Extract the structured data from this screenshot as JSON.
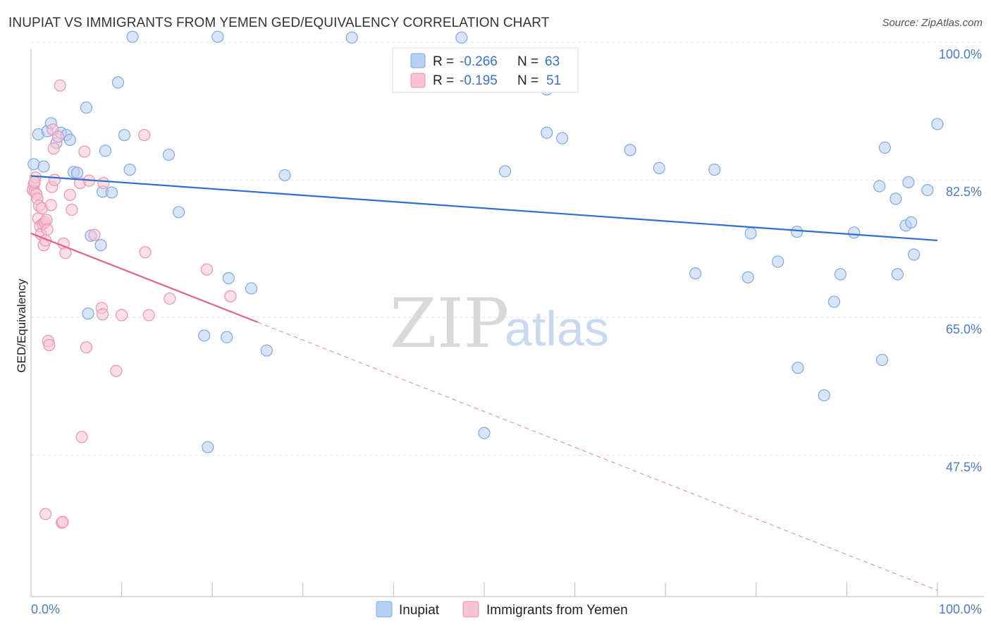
{
  "header": {
    "title": "INUPIAT VS IMMIGRANTS FROM YEMEN GED/EQUIVALENCY CORRELATION CHART",
    "source": "Source: ZipAtlas.com"
  },
  "watermark": {
    "zip": "ZIP",
    "atlas": "atlas"
  },
  "legend": {
    "series": [
      {
        "r_label": "R =",
        "r_value": "-0.266",
        "n_label": "N =",
        "n_value": "63"
      },
      {
        "r_label": "R =",
        "r_value": "-0.195",
        "n_label": "N =",
        "n_value": "51"
      }
    ]
  },
  "bottom_legend": [
    "Inupiat",
    "Immigrants from Yemen"
  ],
  "colors": {
    "inupiat_fill": "#b8d0f2",
    "inupiat_stroke": "#7fa8e0",
    "inupiat_line": "#2f6fcf",
    "yemen_fill": "#f8c4d4",
    "yemen_stroke": "#ee92b0",
    "yemen_line": "#e0628e",
    "grid": "#e2e2e2",
    "axis_label": "#4a7cc9"
  },
  "chart_data": {
    "type": "scatter",
    "title": "INUPIAT VS IMMIGRANTS FROM YEMEN GED/EQUIVALENCY CORRELATION CHART",
    "xlabel": "",
    "ylabel": "GED/Equivalency",
    "xlim": [
      0,
      100
    ],
    "ylim": [
      29.5,
      100
    ],
    "x_tick_labels": [
      "0.0%",
      "100.0%"
    ],
    "y_ticks": [
      100.0,
      82.5,
      65.0,
      47.5
    ],
    "y_tick_labels": [
      "100.0%",
      "82.5%",
      "65.0%",
      "47.5%"
    ],
    "grid": true,
    "series": [
      {
        "name": "Inupiat",
        "r": -0.266,
        "n": 63,
        "trend": {
          "x": [
            0,
            100
          ],
          "y": [
            83.0,
            74.8
          ]
        },
        "points": [
          {
            "x": 0.3,
            "y": 84.5
          },
          {
            "x": 0.8,
            "y": 88.3
          },
          {
            "x": 1.4,
            "y": 84.2
          },
          {
            "x": 1.8,
            "y": 88.7
          },
          {
            "x": 2.2,
            "y": 89.7
          },
          {
            "x": 2.8,
            "y": 87.2
          },
          {
            "x": 3.3,
            "y": 88.5
          },
          {
            "x": 3.9,
            "y": 88.2
          },
          {
            "x": 4.3,
            "y": 87.6
          },
          {
            "x": 4.7,
            "y": 83.5
          },
          {
            "x": 5.1,
            "y": 83.4
          },
          {
            "x": 6.1,
            "y": 91.7
          },
          {
            "x": 6.3,
            "y": 65.5
          },
          {
            "x": 6.6,
            "y": 75.4
          },
          {
            "x": 7.7,
            "y": 74.2
          },
          {
            "x": 7.9,
            "y": 81.0
          },
          {
            "x": 8.2,
            "y": 86.2
          },
          {
            "x": 8.9,
            "y": 80.9
          },
          {
            "x": 9.6,
            "y": 94.9
          },
          {
            "x": 10.3,
            "y": 88.2
          },
          {
            "x": 10.9,
            "y": 83.8
          },
          {
            "x": 11.2,
            "y": 100.7
          },
          {
            "x": 15.2,
            "y": 85.7
          },
          {
            "x": 16.3,
            "y": 78.4
          },
          {
            "x": 19.1,
            "y": 62.7
          },
          {
            "x": 19.5,
            "y": 48.5
          },
          {
            "x": 20.6,
            "y": 100.7
          },
          {
            "x": 21.6,
            "y": 62.5
          },
          {
            "x": 21.8,
            "y": 70.0
          },
          {
            "x": 24.3,
            "y": 68.7
          },
          {
            "x": 26.0,
            "y": 60.8
          },
          {
            "x": 28.0,
            "y": 83.1
          },
          {
            "x": 35.4,
            "y": 100.6
          },
          {
            "x": 47.5,
            "y": 100.6
          },
          {
            "x": 50.0,
            "y": 50.3
          },
          {
            "x": 52.3,
            "y": 83.6
          },
          {
            "x": 56.9,
            "y": 94.0
          },
          {
            "x": 56.9,
            "y": 88.5
          },
          {
            "x": 58.6,
            "y": 87.8
          },
          {
            "x": 66.1,
            "y": 86.3
          },
          {
            "x": 69.3,
            "y": 84.0
          },
          {
            "x": 73.3,
            "y": 70.6
          },
          {
            "x": 75.4,
            "y": 83.8
          },
          {
            "x": 79.1,
            "y": 70.1
          },
          {
            "x": 79.4,
            "y": 75.7
          },
          {
            "x": 82.4,
            "y": 72.1
          },
          {
            "x": 84.5,
            "y": 75.9
          },
          {
            "x": 84.6,
            "y": 58.6
          },
          {
            "x": 87.5,
            "y": 55.1
          },
          {
            "x": 88.6,
            "y": 67.0
          },
          {
            "x": 89.3,
            "y": 70.5
          },
          {
            "x": 90.8,
            "y": 75.8
          },
          {
            "x": 93.6,
            "y": 81.7
          },
          {
            "x": 93.9,
            "y": 59.6
          },
          {
            "x": 94.2,
            "y": 86.6
          },
          {
            "x": 95.4,
            "y": 80.1
          },
          {
            "x": 95.6,
            "y": 70.5
          },
          {
            "x": 96.5,
            "y": 76.7
          },
          {
            "x": 96.8,
            "y": 82.2
          },
          {
            "x": 97.1,
            "y": 77.1
          },
          {
            "x": 97.4,
            "y": 73.0
          },
          {
            "x": 98.9,
            "y": 81.2
          },
          {
            "x": 100.0,
            "y": 89.6
          }
        ]
      },
      {
        "name": "Immigrants from Yemen",
        "r": -0.195,
        "n": 51,
        "trend": {
          "x": [
            0,
            25
          ],
          "y": [
            75.7,
            64.4
          ]
        },
        "trend_extension": {
          "x": [
            25,
            100
          ],
          "y": [
            64.4,
            30.3
          ]
        },
        "points": [
          {
            "x": 0.2,
            "y": 81.2
          },
          {
            "x": 0.3,
            "y": 81.9
          },
          {
            "x": 0.4,
            "y": 81.0
          },
          {
            "x": 0.5,
            "y": 82.8
          },
          {
            "x": 0.6,
            "y": 80.7
          },
          {
            "x": 0.7,
            "y": 80.1
          },
          {
            "x": 0.8,
            "y": 77.6
          },
          {
            "x": 0.9,
            "y": 79.2
          },
          {
            "x": 1.0,
            "y": 76.6
          },
          {
            "x": 1.1,
            "y": 75.6
          },
          {
            "x": 1.2,
            "y": 78.9
          },
          {
            "x": 1.3,
            "y": 76.9
          },
          {
            "x": 1.4,
            "y": 74.2
          },
          {
            "x": 1.5,
            "y": 77.1
          },
          {
            "x": 1.6,
            "y": 74.8
          },
          {
            "x": 1.7,
            "y": 77.4
          },
          {
            "x": 1.8,
            "y": 76.2
          },
          {
            "x": 1.9,
            "y": 62.0
          },
          {
            "x": 2.0,
            "y": 61.5
          },
          {
            "x": 2.2,
            "y": 79.3
          },
          {
            "x": 2.3,
            "y": 81.6
          },
          {
            "x": 2.4,
            "y": 88.9
          },
          {
            "x": 2.5,
            "y": 86.5
          },
          {
            "x": 2.6,
            "y": 82.5
          },
          {
            "x": 3.0,
            "y": 88.0
          },
          {
            "x": 3.2,
            "y": 94.5
          },
          {
            "x": 3.4,
            "y": 38.9
          },
          {
            "x": 3.5,
            "y": 39.0
          },
          {
            "x": 3.6,
            "y": 74.4
          },
          {
            "x": 3.8,
            "y": 73.2
          },
          {
            "x": 4.3,
            "y": 80.6
          },
          {
            "x": 4.5,
            "y": 78.7
          },
          {
            "x": 5.4,
            "y": 82.1
          },
          {
            "x": 5.6,
            "y": 49.8
          },
          {
            "x": 5.9,
            "y": 86.1
          },
          {
            "x": 6.1,
            "y": 61.2
          },
          {
            "x": 6.4,
            "y": 82.4
          },
          {
            "x": 7.0,
            "y": 75.5
          },
          {
            "x": 7.8,
            "y": 66.2
          },
          {
            "x": 7.9,
            "y": 65.4
          },
          {
            "x": 8.0,
            "y": 82.1
          },
          {
            "x": 9.4,
            "y": 58.2
          },
          {
            "x": 10.0,
            "y": 65.3
          },
          {
            "x": 12.5,
            "y": 88.2
          },
          {
            "x": 12.6,
            "y": 73.3
          },
          {
            "x": 13.0,
            "y": 65.3
          },
          {
            "x": 15.3,
            "y": 67.4
          },
          {
            "x": 19.4,
            "y": 71.1
          },
          {
            "x": 22.0,
            "y": 67.7
          },
          {
            "x": 1.6,
            "y": 40.0
          },
          {
            "x": 0.4,
            "y": 82.2
          }
        ]
      }
    ]
  }
}
